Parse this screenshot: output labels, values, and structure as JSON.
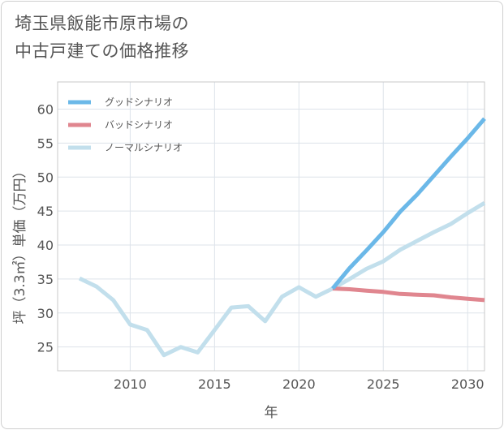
{
  "chart_data": {
    "type": "line",
    "title": "埼玉県飯能市原市場の中古戸建ての価格推移",
    "title_lines": [
      "埼玉県飯能市原市場の",
      "中古戸建ての価格推移"
    ],
    "xlabel": "年",
    "ylabel": "坪（3.3㎡）単価（万円）",
    "xlim": [
      2005.7,
      2031
    ],
    "ylim": [
      21.5,
      64
    ],
    "xticks": [
      2010,
      2015,
      2020,
      2025,
      2030
    ],
    "yticks": [
      25,
      30,
      35,
      40,
      45,
      50,
      55,
      60
    ],
    "grid": true,
    "legend_position": "top-left",
    "series": [
      {
        "name": "ノーマルシナリオ",
        "color": "#c2dfec",
        "x": [
          2007,
          2008,
          2009,
          2010,
          2011,
          2012,
          2013,
          2014,
          2015,
          2016,
          2017,
          2018,
          2019,
          2020,
          2021,
          2022,
          2023,
          2024,
          2025,
          2026,
          2027,
          2028,
          2029,
          2030,
          2031
        ],
        "values": [
          35.1,
          33.9,
          31.9,
          28.3,
          27.5,
          23.8,
          25.0,
          24.2,
          27.5,
          30.8,
          31.0,
          28.8,
          32.4,
          33.8,
          32.4,
          33.6,
          35.0,
          36.5,
          37.6,
          39.3,
          40.6,
          41.9,
          43.1,
          44.7,
          46.2
        ]
      },
      {
        "name": "バッドシナリオ",
        "color": "#e0868f",
        "x": [
          2022,
          2023,
          2024,
          2025,
          2026,
          2027,
          2028,
          2029,
          2030,
          2031
        ],
        "values": [
          33.6,
          33.5,
          33.3,
          33.1,
          32.8,
          32.7,
          32.6,
          32.3,
          32.1,
          31.9
        ]
      },
      {
        "name": "グッドシナリオ",
        "color": "#6bb8e8",
        "x": [
          2022,
          2023,
          2024,
          2025,
          2026,
          2027,
          2028,
          2029,
          2030,
          2031
        ],
        "values": [
          33.6,
          36.6,
          39.2,
          41.9,
          44.9,
          47.4,
          50.2,
          53.0,
          55.7,
          58.6
        ]
      }
    ],
    "legend_order": [
      "グッドシナリオ",
      "バッドシナリオ",
      "ノーマルシナリオ"
    ]
  }
}
